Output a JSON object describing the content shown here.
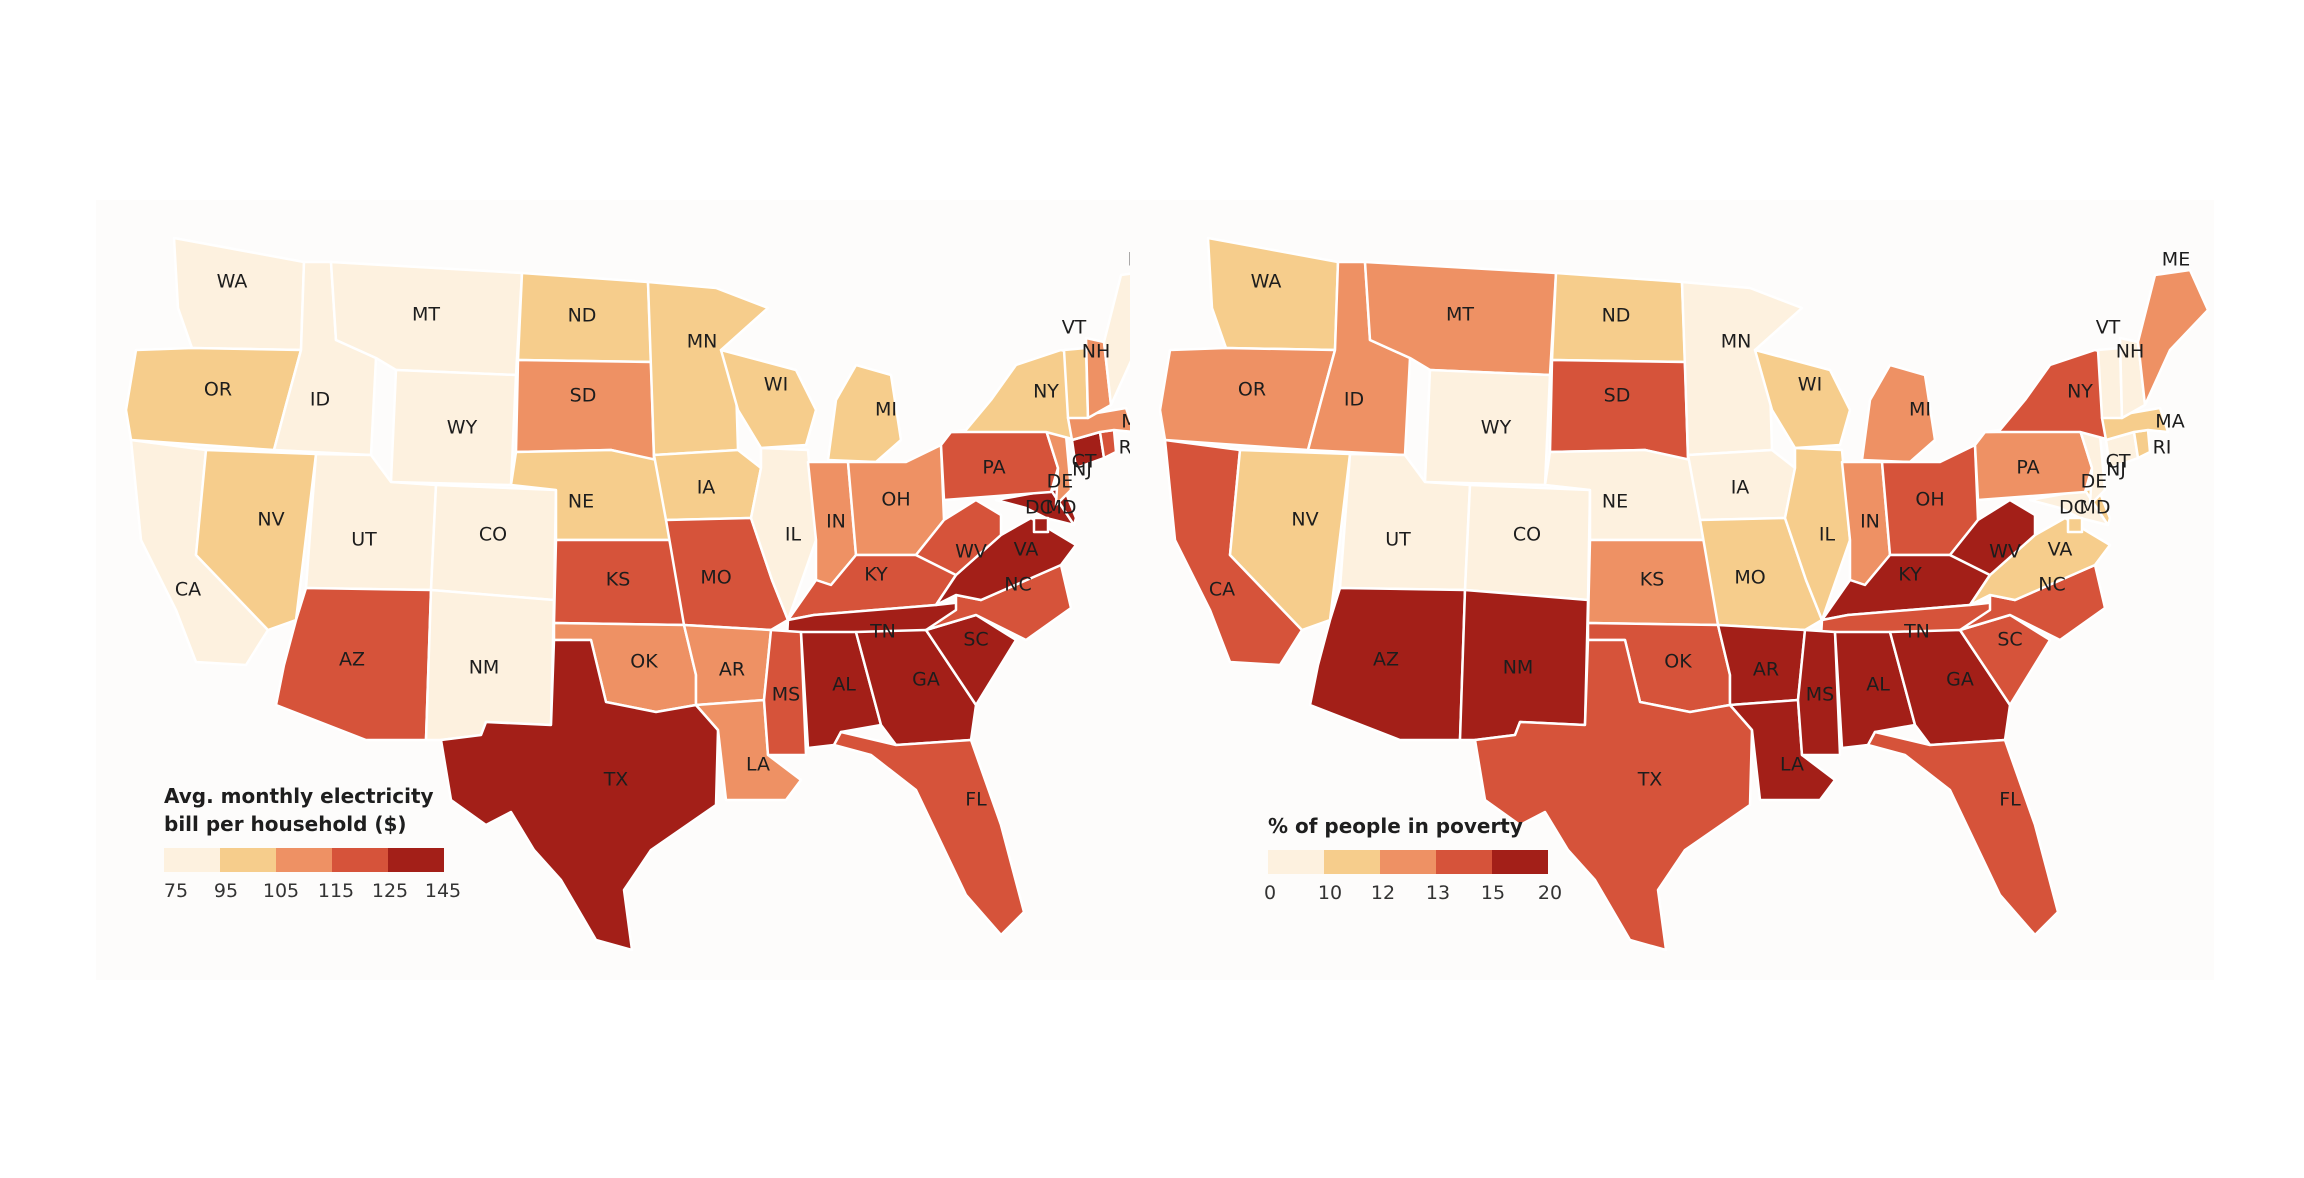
{
  "colors": [
    "#fdf1df",
    "#f6cd8c",
    "#ee9164",
    "#d6533a",
    "#a31f18"
  ],
  "maps": [
    {
      "legend": {
        "title_line1": "Avg. monthly electricity",
        "title_line2": "bill per household ($)",
        "ticks": [
          "75",
          "95",
          "105",
          "115",
          "125",
          "145"
        ]
      },
      "state_class": {
        "WA": 0,
        "OR": 1,
        "CA": 0,
        "ID": 0,
        "NV": 1,
        "MT": 0,
        "WY": 0,
        "UT": 0,
        "AZ": 3,
        "CO": 0,
        "NM": 0,
        "ND": 1,
        "SD": 2,
        "NE": 1,
        "KS": 3,
        "OK": 2,
        "TX": 4,
        "MN": 1,
        "IA": 1,
        "MO": 3,
        "AR": 2,
        "LA": 2,
        "WI": 1,
        "IL": 0,
        "MI": 1,
        "IN": 2,
        "OH": 2,
        "KY": 3,
        "TN": 4,
        "MS": 3,
        "AL": 4,
        "GA": 4,
        "FL": 3,
        "SC": 4,
        "NC": 3,
        "VA": 4,
        "WV": 3,
        "MD": 4,
        "DE": 4,
        "DC": 4,
        "PA": 3,
        "NJ": 2,
        "NY": 1,
        "CT": 4,
        "RI": 3,
        "MA": 2,
        "VT": 1,
        "NH": 2,
        "ME": 0
      }
    },
    {
      "legend": {
        "title_line1": "% of people in poverty",
        "title_line2": "",
        "ticks": [
          "0",
          "10",
          "12",
          "13",
          "15",
          "20"
        ]
      },
      "state_class": {
        "WA": 1,
        "OR": 2,
        "CA": 3,
        "ID": 2,
        "NV": 1,
        "MT": 2,
        "WY": 0,
        "UT": 0,
        "AZ": 4,
        "CO": 0,
        "NM": 4,
        "ND": 1,
        "SD": 3,
        "NE": 0,
        "KS": 2,
        "OK": 3,
        "TX": 3,
        "MN": 0,
        "IA": 0,
        "MO": 1,
        "AR": 4,
        "LA": 4,
        "WI": 1,
        "IL": 1,
        "MI": 2,
        "IN": 2,
        "OH": 3,
        "KY": 4,
        "TN": 3,
        "MS": 4,
        "AL": 4,
        "GA": 4,
        "FL": 3,
        "SC": 3,
        "NC": 3,
        "VA": 1,
        "WV": 4,
        "MD": 0,
        "DE": 1,
        "DC": 1,
        "PA": 2,
        "NJ": 0,
        "NY": 3,
        "CT": 0,
        "RI": 1,
        "MA": 1,
        "VT": 0,
        "NH": 0,
        "ME": 2
      }
    }
  ],
  "state_labels": [
    "WA",
    "OR",
    "CA",
    "ID",
    "NV",
    "MT",
    "WY",
    "UT",
    "AZ",
    "CO",
    "NM",
    "ND",
    "SD",
    "NE",
    "KS",
    "OK",
    "TX",
    "MN",
    "IA",
    "MO",
    "AR",
    "LA",
    "WI",
    "IL",
    "MI",
    "IN",
    "OH",
    "KY",
    "TN",
    "MS",
    "AL",
    "GA",
    "FL",
    "SC",
    "NC",
    "VA",
    "WV",
    "MD",
    "DE",
    "DC",
    "PA",
    "NJ",
    "NY",
    "CT",
    "RI",
    "MA",
    "VT",
    "NH",
    "ME"
  ]
}
